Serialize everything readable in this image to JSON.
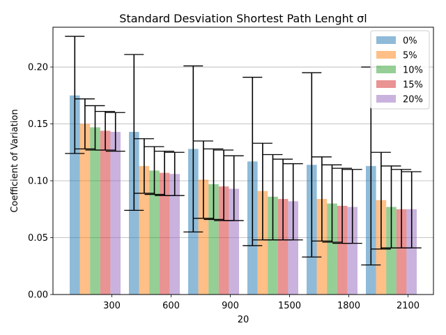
{
  "chart_data": {
    "type": "bar",
    "title": "Standard Desviation Shortest Path Lenght σl",
    "xlabel": "20",
    "ylabel": "Coefficient of Variation",
    "categories": [
      "300",
      "600",
      "900",
      "1500",
      "1800",
      "2100"
    ],
    "ylim": [
      0,
      0.235
    ],
    "yticks": [
      "0.00",
      "0.05",
      "0.10",
      "0.15",
      "0.20"
    ],
    "grid": "y",
    "legend_position": "top-right",
    "series": [
      {
        "name": "0%",
        "color": "#1f77b4",
        "values": [
          0.175,
          0.143,
          0.128,
          0.117,
          0.114,
          0.113
        ],
        "err_low": [
          0.124,
          0.074,
          0.055,
          0.043,
          0.033,
          0.026
        ],
        "err_high": [
          0.227,
          0.211,
          0.201,
          0.191,
          0.195,
          0.2
        ]
      },
      {
        "name": "5%",
        "color": "#ff7f0e",
        "values": [
          0.15,
          0.113,
          0.101,
          0.091,
          0.084,
          0.083
        ],
        "err_low": [
          0.128,
          0.089,
          0.067,
          0.048,
          0.047,
          0.04
        ],
        "err_high": [
          0.172,
          0.137,
          0.135,
          0.133,
          0.121,
          0.125
        ]
      },
      {
        "name": "10%",
        "color": "#2ca02c",
        "values": [
          0.147,
          0.109,
          0.097,
          0.086,
          0.08,
          0.077
        ],
        "err_low": [
          0.127,
          0.088,
          0.066,
          0.048,
          0.046,
          0.041
        ],
        "err_high": [
          0.166,
          0.13,
          0.128,
          0.123,
          0.114,
          0.113
        ]
      },
      {
        "name": "15%",
        "color": "#d62728",
        "values": [
          0.144,
          0.107,
          0.095,
          0.084,
          0.078,
          0.075
        ],
        "err_low": [
          0.127,
          0.087,
          0.065,
          0.048,
          0.045,
          0.041
        ],
        "err_high": [
          0.161,
          0.126,
          0.127,
          0.119,
          0.111,
          0.11
        ]
      },
      {
        "name": "20%",
        "color": "#9467bd",
        "values": [
          0.143,
          0.106,
          0.093,
          0.082,
          0.077,
          0.075
        ],
        "err_low": [
          0.126,
          0.087,
          0.065,
          0.048,
          0.045,
          0.041
        ],
        "err_high": [
          0.16,
          0.125,
          0.122,
          0.115,
          0.11,
          0.108
        ]
      }
    ]
  }
}
